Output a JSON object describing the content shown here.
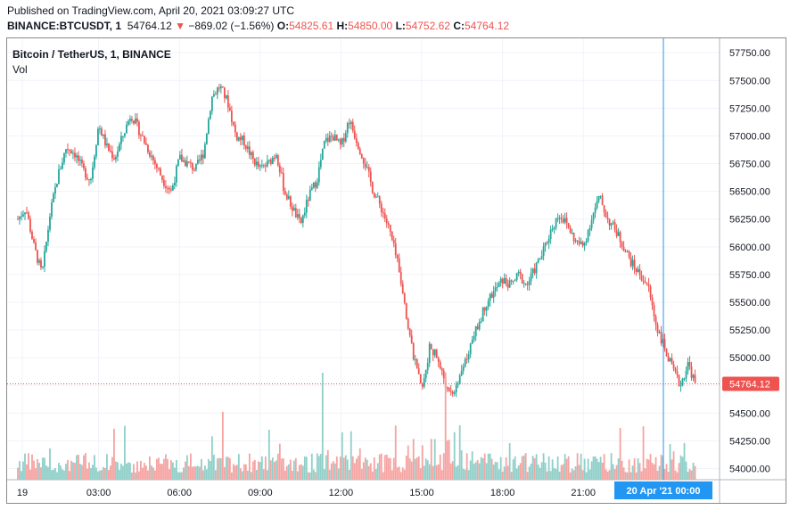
{
  "header": {
    "published": "Published on TradingView.com, April 20, 2021 03:09:27 UTC",
    "symbol": "BINANCE:BTCUSDT, 1",
    "last": "54764.12",
    "change": "−869.02 (−1.56%)",
    "ohlc": {
      "o_label": "O:",
      "o": "54825.61",
      "h_label": "H:",
      "h": "54850.00",
      "l_label": "L:",
      "l": "54752.62",
      "c_label": "C:",
      "c": "54764.12"
    }
  },
  "legend": {
    "title": "Bitcoin / TetherUS, 1, BINANCE",
    "vol": "Vol"
  },
  "colors": {
    "up": "#26a69a",
    "down": "#ef5350",
    "vol_up": "#8fcfc8",
    "vol_down": "#f5a3a1",
    "crosshair": "#2196f3",
    "price_line": "#ef5350",
    "grid": "#f0f3fa"
  },
  "chart_data": {
    "type": "candlestick",
    "series_name": "Bitcoin / TetherUS, 1, BINANCE",
    "interval": "1 minute",
    "x_ticks": [
      "19",
      "03:00",
      "06:00",
      "09:00",
      "12:00",
      "15:00",
      "18:00",
      "21:00"
    ],
    "y_ticks": [
      54000,
      54250,
      54500,
      54750,
      55000,
      55250,
      55500,
      55750,
      56000,
      56250,
      56500,
      56750,
      57000,
      57250,
      57500,
      57750
    ],
    "y_tick_labels": [
      "54000.00",
      "54250.00",
      "54500.00",
      "54750.00",
      "55000.00",
      "55250.00",
      "55500.00",
      "55750.00",
      "56000.00",
      "56250.00",
      "56500.00",
      "56750.00",
      "57000.00",
      "57250.00",
      "57500.00",
      "57750.00"
    ],
    "ylim": [
      53900,
      57880
    ],
    "last_price": 54764.12,
    "last_price_label": "54764.12",
    "crosshair_label": "20 Apr '21   00:00",
    "grid": true,
    "price_path_hours": [
      0,
      0.3,
      0.6,
      0.9,
      1.2,
      1.5,
      1.8,
      2.1,
      2.4,
      2.7,
      3.0,
      3.3,
      3.6,
      3.9,
      4.2,
      4.5,
      4.8,
      5.1,
      5.4,
      5.7,
      6.0,
      6.3,
      6.6,
      6.9,
      7.2,
      7.5,
      7.8,
      8.1,
      8.4,
      8.7,
      9.0,
      9.3,
      9.6,
      9.9,
      10.2,
      10.5,
      10.8,
      11.1,
      11.4,
      11.7,
      12.0,
      12.3,
      12.6,
      12.9,
      13.2,
      13.5,
      13.8,
      14.1,
      14.4,
      14.7,
      15.0,
      15.3,
      15.6,
      15.9,
      16.2,
      16.5,
      16.8,
      17.1,
      17.4,
      17.7,
      18.0,
      18.3,
      18.6,
      18.9,
      19.2,
      19.5,
      19.8,
      20.1,
      20.4,
      20.7,
      21.0,
      21.3,
      21.6,
      21.9,
      22.2,
      22.5,
      22.8,
      23.1,
      23.4,
      23.7,
      24.0,
      24.3,
      24.6,
      24.9,
      25.15
    ],
    "price_path_values": [
      56250,
      56350,
      56000,
      55750,
      56300,
      56650,
      56900,
      56850,
      56700,
      56600,
      57100,
      56900,
      56800,
      57000,
      57200,
      57050,
      56900,
      56750,
      56600,
      56500,
      56800,
      56750,
      56700,
      56850,
      57350,
      57450,
      57300,
      57000,
      56950,
      56800,
      56700,
      56750,
      56850,
      56500,
      56350,
      56200,
      56450,
      56600,
      56950,
      57000,
      56900,
      57150,
      56950,
      56750,
      56500,
      56350,
      56150,
      55850,
      55400,
      55000,
      54700,
      55100,
      55000,
      54750,
      54700,
      54900,
      55100,
      55300,
      55500,
      55600,
      55700,
      55650,
      55750,
      55650,
      55800,
      55950,
      56150,
      56300,
      56200,
      56050,
      56000,
      56250,
      56450,
      56250,
      56150,
      56000,
      55850,
      55750,
      55650,
      55300,
      55100,
      54900,
      54750,
      54950,
      54764.12
    ]
  }
}
